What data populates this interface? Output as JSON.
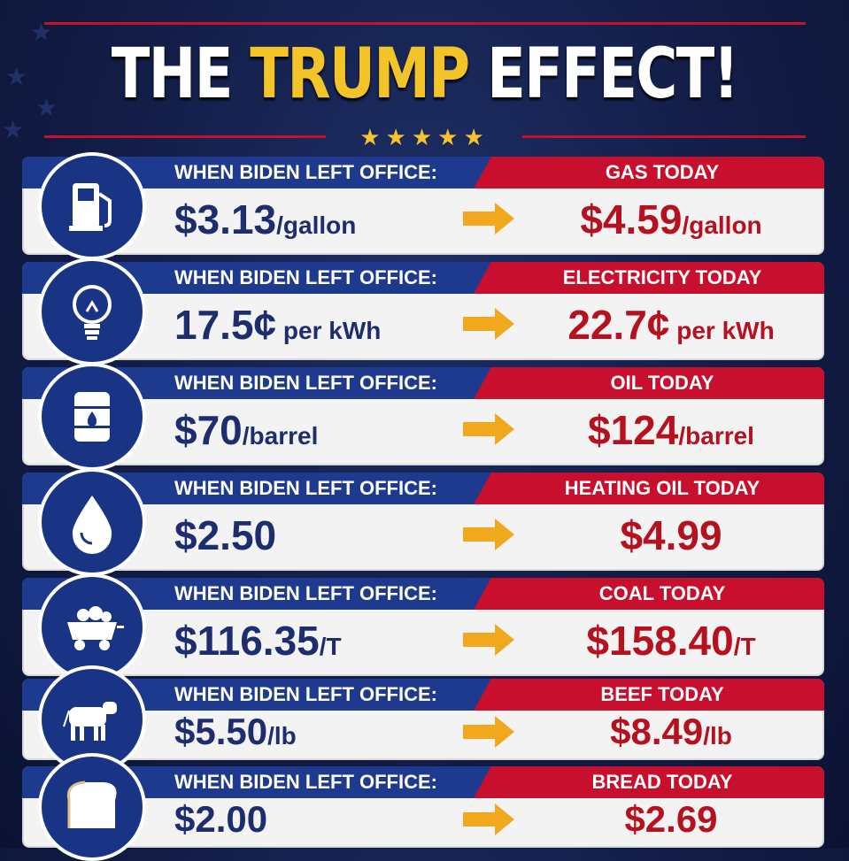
{
  "title": {
    "part1": "THE",
    "part2": "TRUMP",
    "part3": "EFFECT!"
  },
  "stars": "★★★★★",
  "colors": {
    "navy": "#1d3a8f",
    "red": "#c8102e",
    "gold": "#f2c42a",
    "bg": "#121c45"
  },
  "rows": [
    {
      "icon": "gas-pump-icon",
      "left_label": "WHEN BIDEN LEFT OFFICE:",
      "left_value": "$3.13",
      "left_unit": "/gallon",
      "right_label": "GAS TODAY",
      "right_value": "$4.59",
      "right_unit": "/gallon"
    },
    {
      "icon": "lightbulb-icon",
      "left_label": "WHEN BIDEN LEFT OFFICE:",
      "left_value": "17.5¢",
      "left_unit": " per kWh",
      "right_label": "ELECTRICITY TODAY",
      "right_value": "22.7¢",
      "right_unit": " per kWh"
    },
    {
      "icon": "oil-barrel-icon",
      "left_label": "WHEN BIDEN LEFT OFFICE:",
      "left_value": "$70",
      "left_unit": "/barrel",
      "right_label": "OIL TODAY",
      "right_value": "$124",
      "right_unit": "/barrel"
    },
    {
      "icon": "droplet-icon",
      "left_label": "WHEN BIDEN LEFT OFFICE:",
      "left_value": "$2.50",
      "left_unit": "",
      "right_label": "HEATING OIL TODAY",
      "right_value": "$4.99",
      "right_unit": ""
    },
    {
      "icon": "coal-cart-icon",
      "left_label": "WHEN BIDEN LEFT OFFICE:",
      "left_value": "$116.35",
      "left_unit": "/T",
      "right_label": "COAL TODAY",
      "right_value": "$158.40",
      "right_unit": "/T"
    },
    {
      "icon": "cow-icon",
      "left_label": "WHEN BIDEN LEFT OFFICE:",
      "left_value": "$5.50",
      "left_unit": "/lb",
      "right_label": "BEEF TODAY",
      "right_value": "$8.49",
      "right_unit": "/lb"
    },
    {
      "icon": "bread-icon",
      "left_label": "WHEN BIDEN LEFT OFFICE:",
      "left_value": "$2.00",
      "left_unit": "",
      "right_label": "BREAD TODAY",
      "right_value": "$2.69",
      "right_unit": ""
    }
  ]
}
